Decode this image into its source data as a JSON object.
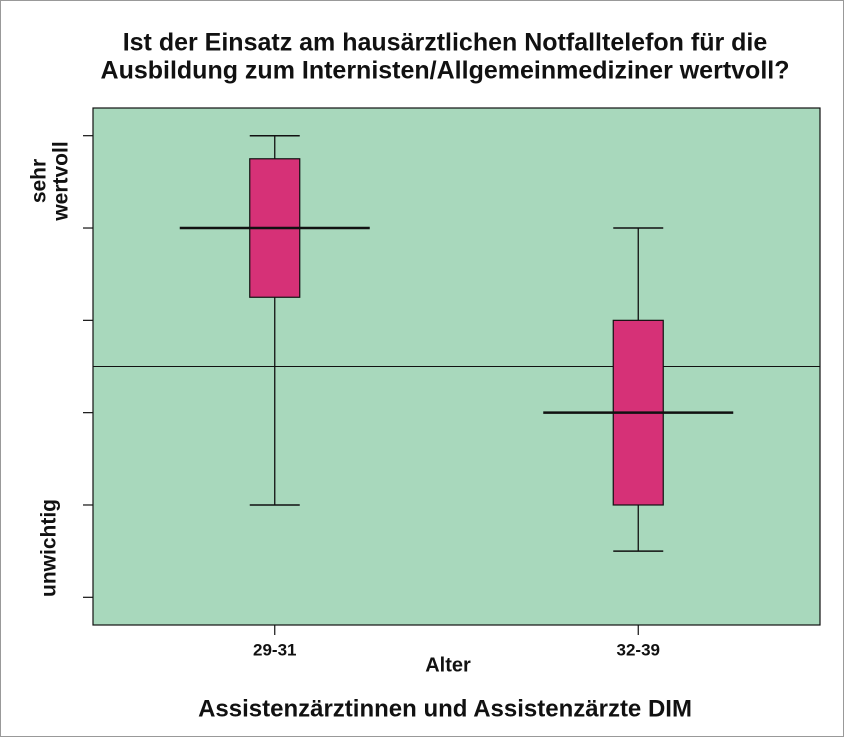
{
  "chart_data": {
    "type": "box",
    "title": [
      "Ist der Einsatz am hausärztlichen Notfalltelefon für die",
      "Ausbildung zum Internisten/Allgemeinmediziner wertvoll?"
    ],
    "x_label": "Alter",
    "caption": "Assistenzärztinnen und Assistenzärzte DIM",
    "y_label_top": [
      "sehr",
      "wertvoll"
    ],
    "y_label_bottom": "unwichtig",
    "categories": [
      "29-31",
      "32-39"
    ],
    "series": [
      {
        "color": "#d63177",
        "boxes": [
          {
            "whislo": 2,
            "q1": 4.25,
            "median": 5,
            "q3": 5.75,
            "whishi": 6
          },
          {
            "whislo": 1.5,
            "q1": 2,
            "median": 3,
            "q3": 4,
            "whishi": 5
          }
        ]
      }
    ],
    "reference_line": 3.5,
    "background": "#a8d8bc",
    "ylim": [
      0.7,
      6.3
    ],
    "yticks": [
      1,
      2,
      3,
      4,
      5,
      6
    ]
  }
}
